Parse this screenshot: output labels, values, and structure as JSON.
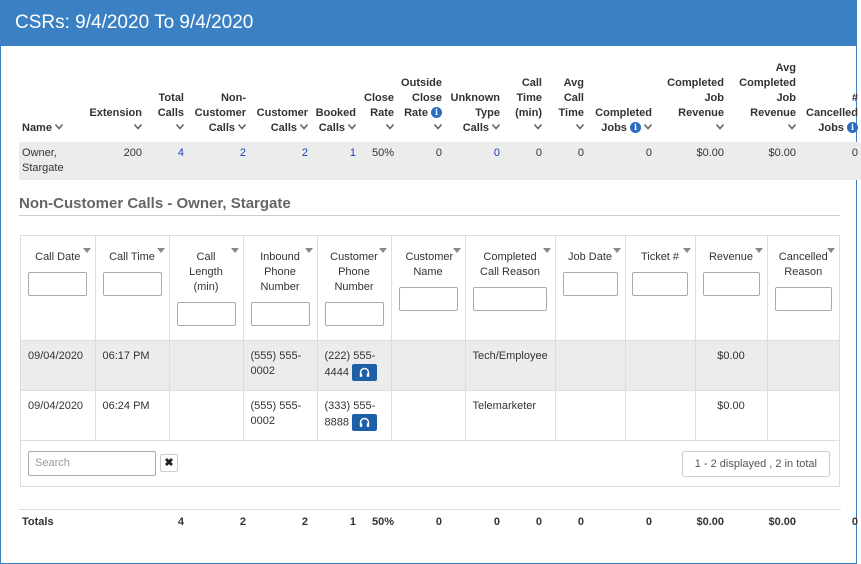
{
  "window": {
    "title": "CSRs: 9/4/2020 To 9/4/2020"
  },
  "summary": {
    "headers": {
      "name": "Name",
      "extension": "Extension",
      "total_calls": "Total Calls",
      "non_customer_calls": "Non-Customer Calls",
      "customer_calls": "Customer Calls",
      "booked_calls": "Booked Calls",
      "close_rate": "Close Rate",
      "outside_close_rate": "Outside Close Rate",
      "unknown_type_calls": "Unknown Type Calls",
      "call_time": "Call Time (min)",
      "avg_call_time": "Avg Call Time",
      "completed_jobs": "Completed Jobs",
      "completed_job_revenue": "Completed Job Revenue",
      "avg_completed_job_revenue": "Avg Completed Job Revenue",
      "cancelled_jobs": "# Cancelled Jobs"
    },
    "row": {
      "name": "Owner, Stargate",
      "extension": "200",
      "total_calls": "4",
      "non_customer_calls": "2",
      "customer_calls": "2",
      "booked_calls": "1",
      "close_rate": "50%",
      "outside_close_rate": "0",
      "unknown_type_calls": "0",
      "call_time": "0",
      "avg_call_time": "0",
      "completed_jobs": "0",
      "completed_job_revenue": "$0.00",
      "avg_completed_job_revenue": "$0.00",
      "cancelled_jobs": "0"
    }
  },
  "detail": {
    "section_title": "Non-Customer Calls - Owner, Stargate",
    "columns": {
      "call_date": "Call Date",
      "call_time": "Call Time",
      "call_length": "Call Length (min)",
      "inbound_phone": "Inbound Phone Number",
      "customer_phone": "Customer Phone Number",
      "customer_name": "Customer Name",
      "completed_call_reason": "Completed Call Reason",
      "job_date": "Job Date",
      "ticket": "Ticket #",
      "revenue": "Revenue",
      "cancelled_reason": "Cancelled Reason"
    },
    "rows": [
      {
        "call_date": "09/04/2020",
        "call_time": "06:17 PM",
        "call_length": "",
        "inbound_phone": "(555) 555-0002",
        "customer_phone": "(222) 555-4444",
        "customer_name": "",
        "completed_call_reason": "Tech/Employee",
        "job_date": "",
        "ticket": "",
        "revenue": "$0.00",
        "cancelled_reason": ""
      },
      {
        "call_date": "09/04/2020",
        "call_time": "06:24 PM",
        "call_length": "",
        "inbound_phone": "(555) 555-0002",
        "customer_phone": "(333) 555-8888",
        "customer_name": "",
        "completed_call_reason": "Telemarketer",
        "job_date": "",
        "ticket": "",
        "revenue": "$0.00",
        "cancelled_reason": ""
      }
    ],
    "search_placeholder": "Search",
    "clear_label": "✖",
    "pager_info": "1 - 2 displayed , 2 in total"
  },
  "totals": {
    "label": "Totals",
    "total_calls": "4",
    "non_customer_calls": "2",
    "customer_calls": "2",
    "booked_calls": "1",
    "close_rate": "50%",
    "outside_close_rate": "0",
    "unknown_type_calls": "0",
    "call_time": "0",
    "avg_call_time": "0",
    "completed_jobs": "0",
    "completed_job_revenue": "$0.00",
    "avg_completed_job_revenue": "$0.00",
    "cancelled_jobs": "0"
  },
  "colors": {
    "header_blue": "#3a80c3",
    "link_blue": "#1a3fb5",
    "button_blue": "#1f5fa8"
  }
}
